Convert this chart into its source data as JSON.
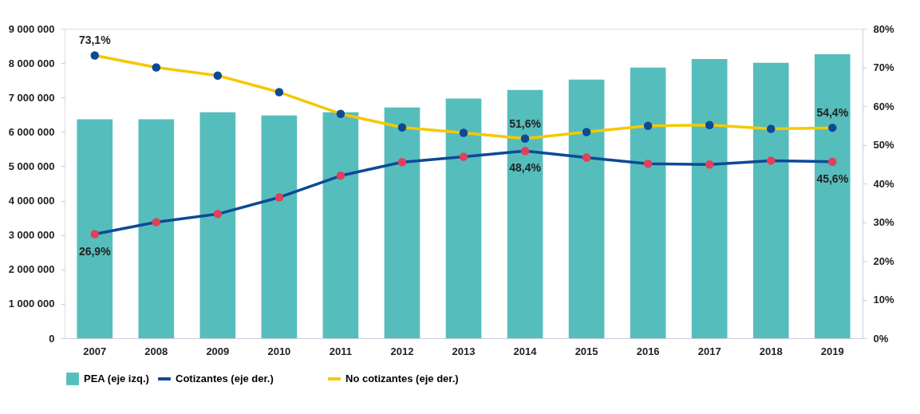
{
  "chart_data": {
    "type": "bar",
    "categories": [
      "2007",
      "2008",
      "2009",
      "2010",
      "2011",
      "2012",
      "2013",
      "2014",
      "2015",
      "2016",
      "2017",
      "2018",
      "2019"
    ],
    "series": [
      {
        "name": "PEA (eje izq.)",
        "color": "#56bdbd",
        "values": [
          6370000,
          6370000,
          6570000,
          6480000,
          6570000,
          6710000,
          6970000,
          7220000,
          7520000,
          7870000,
          8120000,
          8010000,
          8260000
        ]
      },
      {
        "name": "Cotizantes (eje der.)",
        "type": "line",
        "axis": "y2",
        "color": "#0d4a96",
        "colors": [
          "#e0405a",
          "#e0405a",
          "#e0405a",
          "#e0405a",
          "#e0405a",
          "#e0405a",
          "#e0405a",
          "#e0405a",
          "#e0405a",
          "#e0405a",
          "#e0405a",
          "#e0405a",
          "#e0405a"
        ],
        "values": [
          26.9,
          30.0,
          32.1,
          36.4,
          42.0,
          45.5,
          46.9,
          48.4,
          46.7,
          45.1,
          44.9,
          45.9,
          45.6
        ],
        "value_labels": [
          "26,9%",
          null,
          null,
          null,
          null,
          null,
          null,
          "48,4%",
          null,
          null,
          null,
          null,
          "45,6%"
        ]
      },
      {
        "name": "No cotizantes (eje der.)",
        "type": "line",
        "axis": "y2",
        "color": "#f5c800",
        "colors": [
          "#0d4a96",
          "#0d4a96",
          "#0d4a96",
          "#0d4a96",
          "#0d4a96",
          "#0d4a96",
          "#0d4a96",
          "#0d4a96",
          "#0d4a96",
          "#0d4a96",
          "#0d4a96",
          "#0d4a96",
          "#0d4a96"
        ],
        "values": [
          73.1,
          70.0,
          67.9,
          63.6,
          58.0,
          54.5,
          53.1,
          51.6,
          53.3,
          54.9,
          55.1,
          54.1,
          54.4
        ],
        "value_labels": [
          "73,1%",
          null,
          null,
          null,
          null,
          null,
          null,
          "51,6%",
          null,
          null,
          null,
          null,
          "54,4%"
        ]
      }
    ],
    "ylim": [
      0,
      9000000
    ],
    "yticks": [
      {
        "value": 0,
        "label": "0"
      },
      {
        "value": 1000000,
        "label": "1 000 000"
      },
      {
        "value": 2000000,
        "label": "2 000 000"
      },
      {
        "value": 3000000,
        "label": "3 000 000"
      },
      {
        "value": 4000000,
        "label": "4 000 000"
      },
      {
        "value": 5000000,
        "label": "5 000 000"
      },
      {
        "value": 6000000,
        "label": "6 000 000"
      },
      {
        "value": 7000000,
        "label": "7 000 000"
      },
      {
        "value": 8000000,
        "label": "8 000 000"
      },
      {
        "value": 9000000,
        "label": "9 000 000"
      }
    ],
    "y2lim": [
      0,
      80
    ],
    "y2ticks": [
      {
        "value": 0,
        "label": "0%"
      },
      {
        "value": 10,
        "label": "10%"
      },
      {
        "value": 20,
        "label": "20%"
      },
      {
        "value": 30,
        "label": "30%"
      },
      {
        "value": 40,
        "label": "40%"
      },
      {
        "value": 50,
        "label": "50%"
      },
      {
        "value": 60,
        "label": "60%"
      },
      {
        "value": 70,
        "label": "70%"
      },
      {
        "value": 80,
        "label": "80%"
      }
    ],
    "marker": "circle",
    "line_style": "solid",
    "grid": false,
    "legend": "bottom"
  }
}
